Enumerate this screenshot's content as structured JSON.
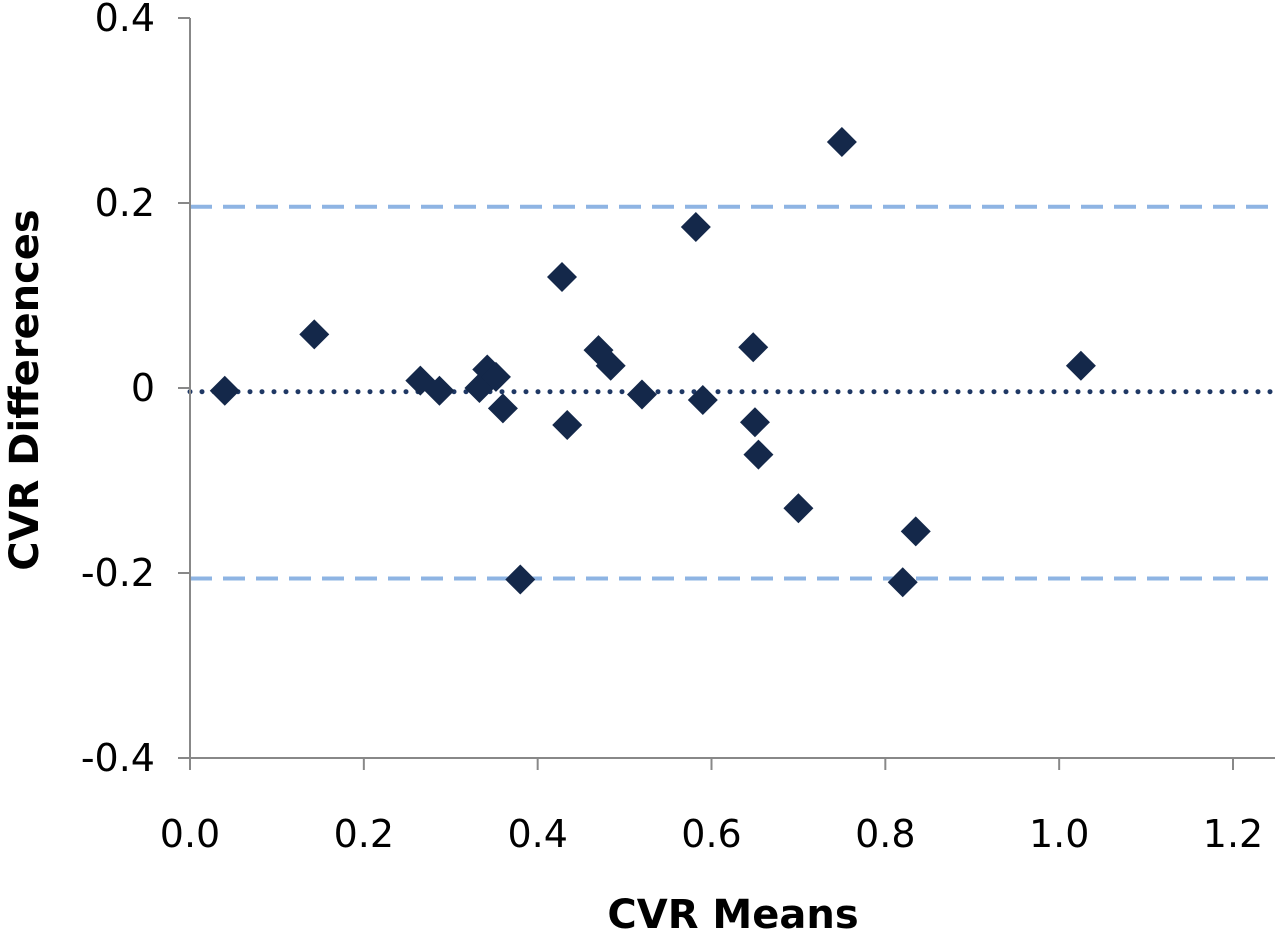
{
  "chart_data": {
    "type": "scatter",
    "title": "",
    "xlabel": "CVR Means",
    "ylabel": "CVR Differences",
    "xlim": [
      0.0,
      1.25
    ],
    "ylim": [
      -0.4,
      0.4
    ],
    "x_ticks": [
      0.0,
      0.2,
      0.4,
      0.6,
      0.8,
      1.0,
      1.2
    ],
    "x_tick_labels": [
      "0.0",
      "0.2",
      "0.4",
      "0.6",
      "0.8",
      "1.0",
      "1.2"
    ],
    "y_ticks": [
      0.4,
      0.2,
      0,
      -0.2,
      -0.4
    ],
    "y_tick_labels": [
      "0.4",
      "0.2",
      "0",
      "-0.2",
      "-0.4"
    ],
    "grid": false,
    "legend": "none",
    "points": [
      {
        "x": 0.04,
        "y": -0.003
      },
      {
        "x": 0.143,
        "y": 0.058
      },
      {
        "x": 0.265,
        "y": 0.008
      },
      {
        "x": 0.287,
        "y": -0.003
      },
      {
        "x": 0.333,
        "y": 0.0
      },
      {
        "x": 0.342,
        "y": 0.02
      },
      {
        "x": 0.352,
        "y": 0.012
      },
      {
        "x": 0.36,
        "y": -0.022
      },
      {
        "x": 0.38,
        "y": -0.207
      },
      {
        "x": 0.428,
        "y": 0.12
      },
      {
        "x": 0.434,
        "y": -0.04
      },
      {
        "x": 0.47,
        "y": 0.041
      },
      {
        "x": 0.484,
        "y": 0.024
      },
      {
        "x": 0.52,
        "y": -0.007
      },
      {
        "x": 0.582,
        "y": 0.174
      },
      {
        "x": 0.59,
        "y": -0.013
      },
      {
        "x": 0.648,
        "y": 0.044
      },
      {
        "x": 0.65,
        "y": -0.037
      },
      {
        "x": 0.654,
        "y": -0.072
      },
      {
        "x": 0.7,
        "y": -0.13
      },
      {
        "x": 0.75,
        "y": 0.266
      },
      {
        "x": 0.82,
        "y": -0.21
      },
      {
        "x": 0.835,
        "y": -0.155
      },
      {
        "x": 1.025,
        "y": 0.024
      }
    ],
    "reference_lines": [
      {
        "y": 0.196,
        "style": "dashed",
        "color": "#8eb4e3"
      },
      {
        "y": -0.004,
        "style": "dotted",
        "color": "#1f3864"
      },
      {
        "y": -0.206,
        "style": "dashed",
        "color": "#8eb4e3"
      }
    ],
    "marker": {
      "shape": "diamond",
      "color": "#14284a"
    }
  }
}
